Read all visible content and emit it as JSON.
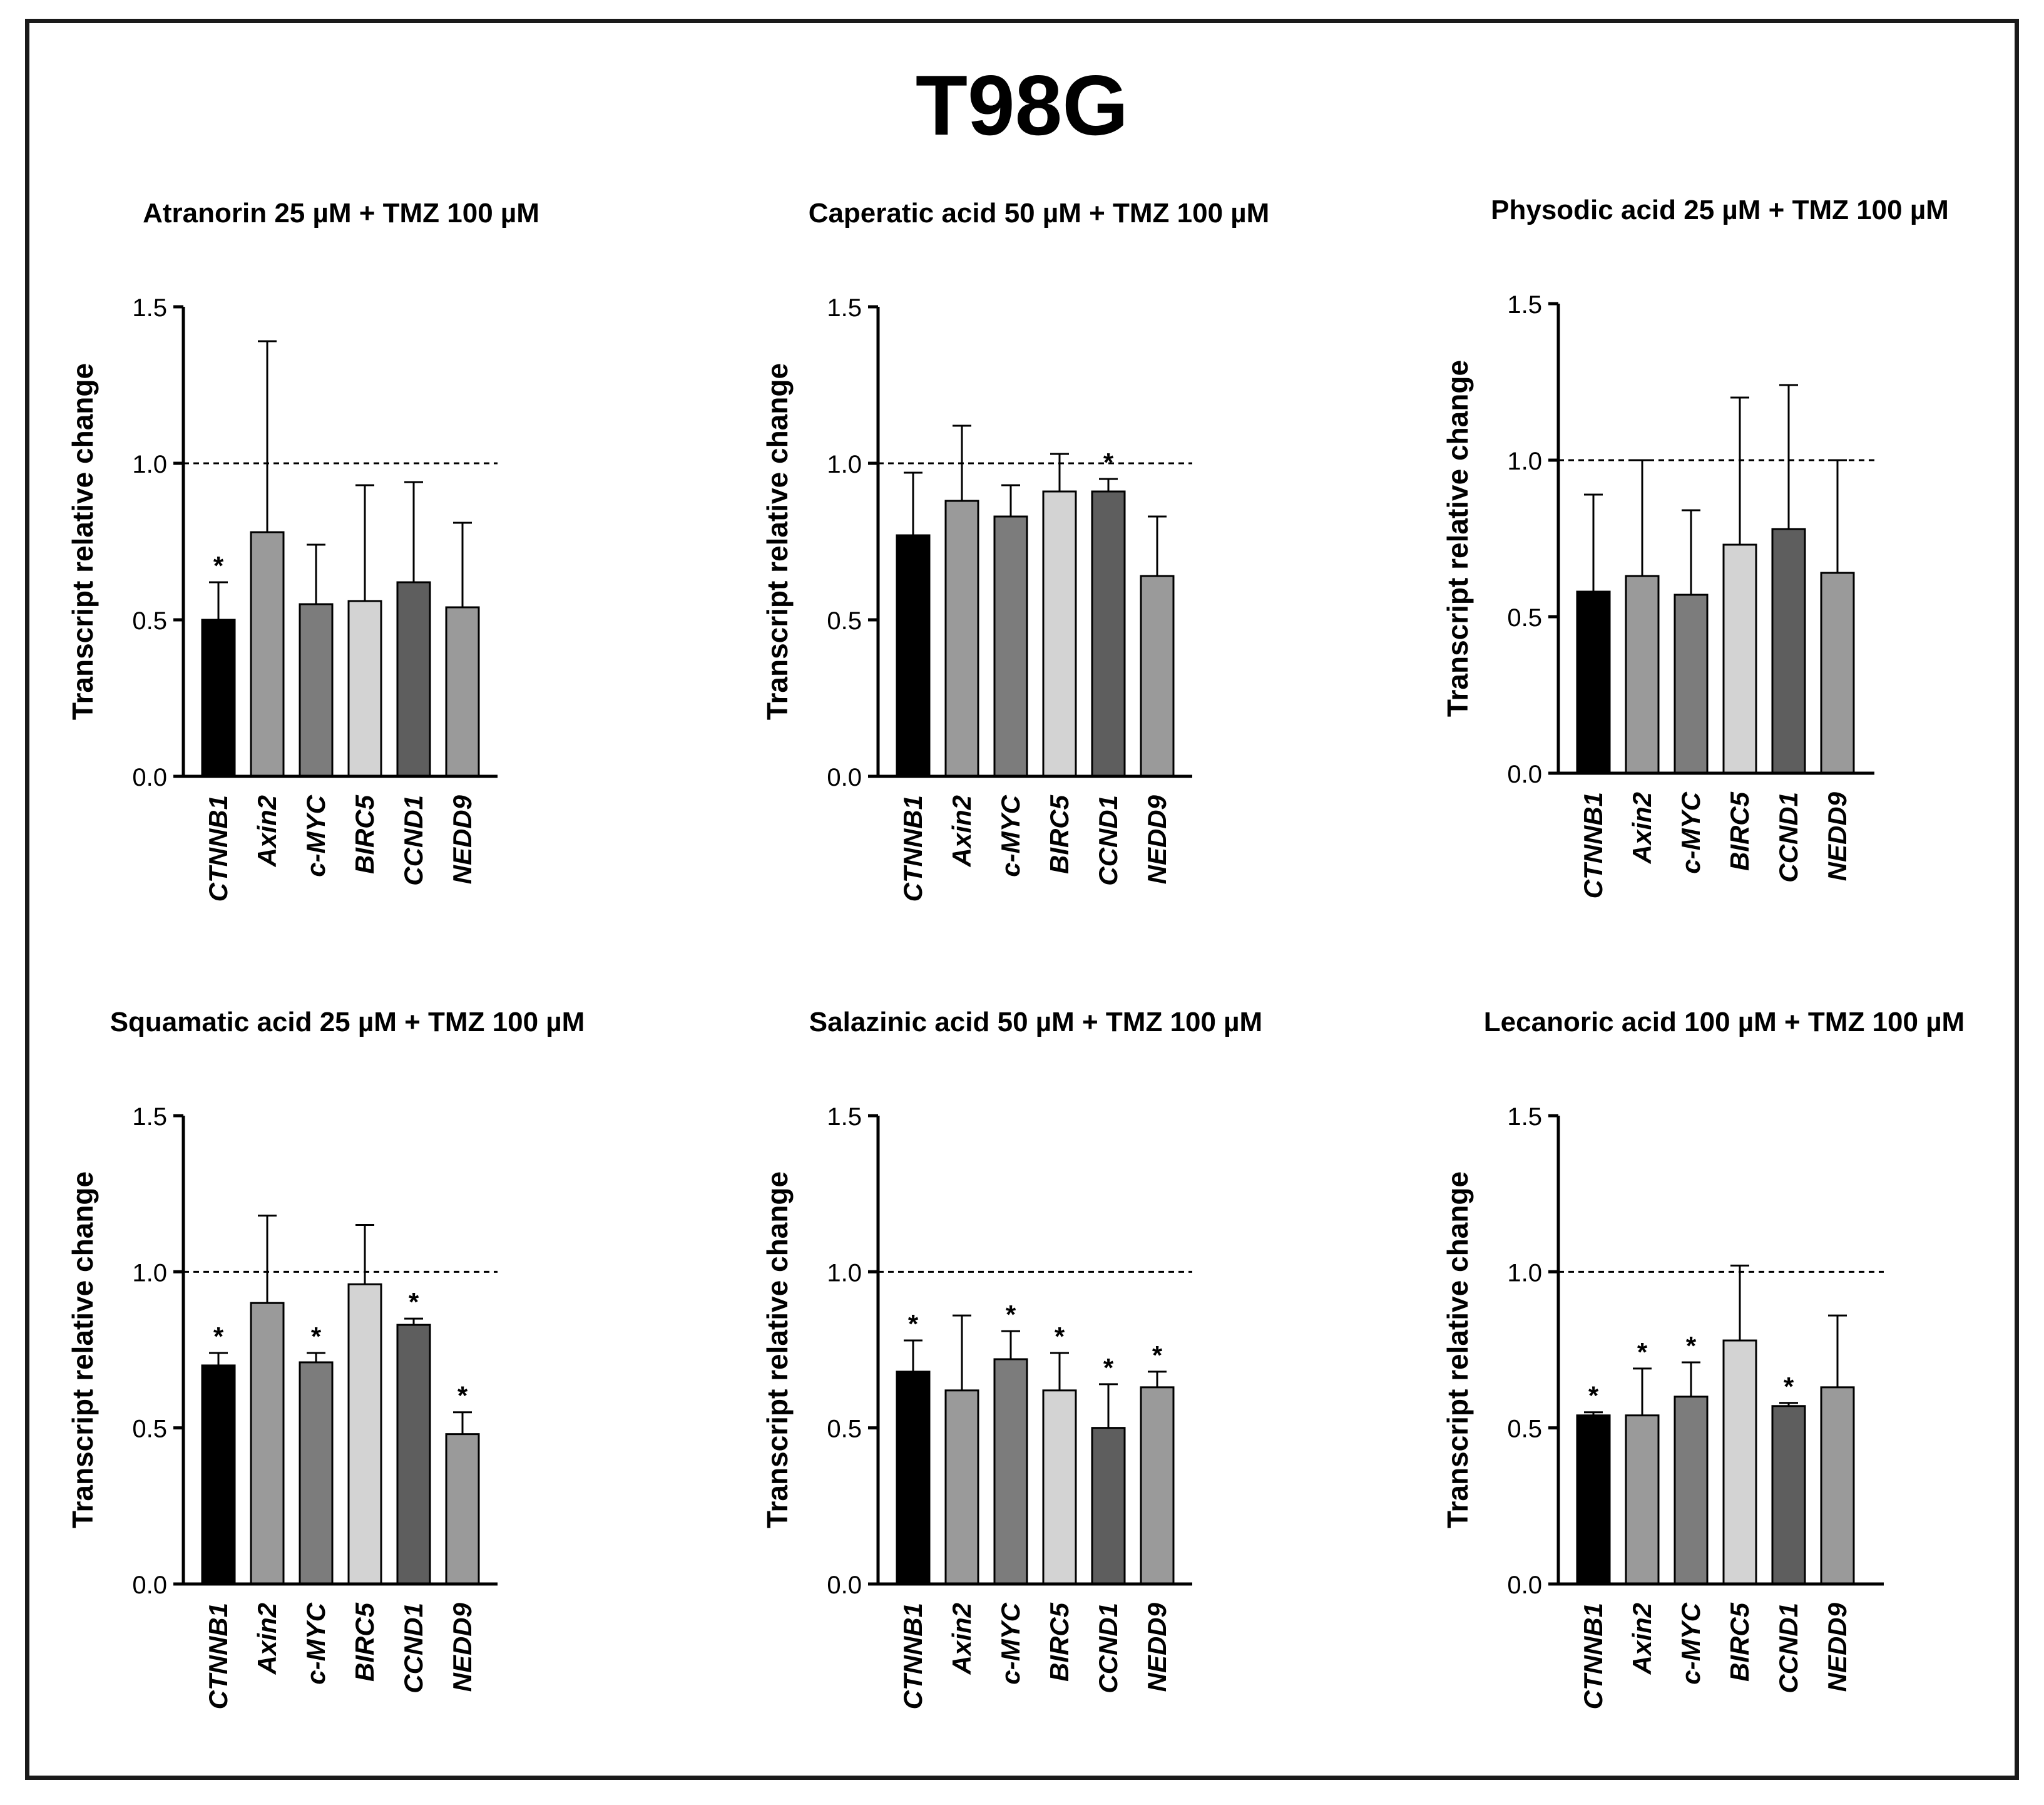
{
  "figure_title": "T98G",
  "chart_data": [
    {
      "type": "bar",
      "title": "Atranorin 25 µM + TMZ 100 µM",
      "ylabel": "Transcript relative change",
      "xlabel": "",
      "ylim": [
        0,
        1.5
      ],
      "yticks": [
        "0.0",
        "0.5",
        "1.0",
        "1.5"
      ],
      "reference_line": 1.0,
      "categories": [
        "CTNNB1",
        "Axin2",
        "c-MYC",
        "BIRC5",
        "CCND1",
        "NEDD9"
      ],
      "values": [
        0.5,
        0.78,
        0.55,
        0.56,
        0.62,
        0.54
      ],
      "errors": [
        0.12,
        0.61,
        0.19,
        0.37,
        0.32,
        0.27
      ],
      "significant": [
        true,
        false,
        false,
        false,
        false,
        false
      ]
    },
    {
      "type": "bar",
      "title": "Caperatic acid 50 µM + TMZ 100 µM",
      "ylabel": "Transcript relative change",
      "xlabel": "",
      "ylim": [
        0,
        1.5
      ],
      "yticks": [
        "0.0",
        "0.5",
        "1.0",
        "1.5"
      ],
      "reference_line": 1.0,
      "categories": [
        "CTNNB1",
        "Axin2",
        "c-MYC",
        "BIRC5",
        "CCND1",
        "NEDD9"
      ],
      "values": [
        0.77,
        0.88,
        0.83,
        0.91,
        0.91,
        0.64
      ],
      "errors": [
        0.2,
        0.24,
        0.1,
        0.12,
        0.04,
        0.19
      ],
      "significant": [
        false,
        false,
        false,
        false,
        true,
        false
      ]
    },
    {
      "type": "bar",
      "title": "Physodic acid 25 µM + TMZ 100 µM",
      "ylabel": "Transcript relative change",
      "xlabel": "",
      "ylim": [
        0,
        1.5
      ],
      "yticks": [
        "0.0",
        "0.5",
        "1.0",
        "1.5"
      ],
      "reference_line": 1.0,
      "categories": [
        "CTNNB1",
        "Axin2",
        "c-MYC",
        "BIRC5",
        "CCND1",
        "NEDD9"
      ],
      "values": [
        0.58,
        0.63,
        0.57,
        0.73,
        0.78,
        0.64
      ],
      "errors": [
        0.31,
        0.37,
        0.27,
        0.47,
        0.46,
        0.36
      ],
      "significant": [
        false,
        false,
        false,
        false,
        false,
        false
      ]
    },
    {
      "type": "bar",
      "title": "Squamatic acid 25 µM + TMZ 100 µM",
      "ylabel": "Transcript relative change",
      "xlabel": "",
      "ylim": [
        0,
        1.5
      ],
      "yticks": [
        "0.0",
        "0.5",
        "1.0",
        "1.5"
      ],
      "reference_line": 1.0,
      "categories": [
        "CTNNB1",
        "Axin2",
        "c-MYC",
        "BIRC5",
        "CCND1",
        "NEDD9"
      ],
      "values": [
        0.7,
        0.9,
        0.71,
        0.96,
        0.83,
        0.48
      ],
      "errors": [
        0.04,
        0.28,
        0.03,
        0.19,
        0.02,
        0.07
      ],
      "significant": [
        true,
        false,
        true,
        false,
        true,
        true
      ]
    },
    {
      "type": "bar",
      "title": "Salazinic acid 50 µM + TMZ 100 µM",
      "ylabel": "Transcript relative change",
      "xlabel": "",
      "ylim": [
        0,
        1.5
      ],
      "yticks": [
        "0.0",
        "0.5",
        "1.0",
        "1.5"
      ],
      "reference_line": 1.0,
      "categories": [
        "CTNNB1",
        "Axin2",
        "c-MYC",
        "BIRC5",
        "CCND1",
        "NEDD9"
      ],
      "values": [
        0.68,
        0.62,
        0.72,
        0.62,
        0.5,
        0.63
      ],
      "errors": [
        0.1,
        0.24,
        0.09,
        0.12,
        0.14,
        0.05
      ],
      "significant": [
        true,
        false,
        true,
        true,
        true,
        true
      ]
    },
    {
      "type": "bar",
      "title": "Lecanoric acid 100 µM + TMZ 100 µM",
      "ylabel": "Transcript relative change",
      "xlabel": "",
      "ylim": [
        0,
        1.5
      ],
      "yticks": [
        "0.0",
        "0.5",
        "1.0",
        "1.5"
      ],
      "reference_line": 1.0,
      "categories": [
        "CTNNB1",
        "Axin2",
        "c-MYC",
        "BIRC5",
        "CCND1",
        "NEDD9"
      ],
      "values": [
        0.54,
        0.54,
        0.6,
        0.78,
        0.57,
        0.63
      ],
      "errors": [
        0.01,
        0.15,
        0.11,
        0.24,
        0.01,
        0.23
      ],
      "significant": [
        true,
        true,
        true,
        false,
        true,
        false
      ]
    }
  ],
  "colors": {
    "bar_fills": [
      "#000000",
      "#9a9a9a",
      "#7c7c7c",
      "#d3d3d3",
      "#5e5e5e",
      "#9a9a9a"
    ],
    "axis": "#000000",
    "reference_line": "#000000",
    "significance_marker": "*"
  }
}
